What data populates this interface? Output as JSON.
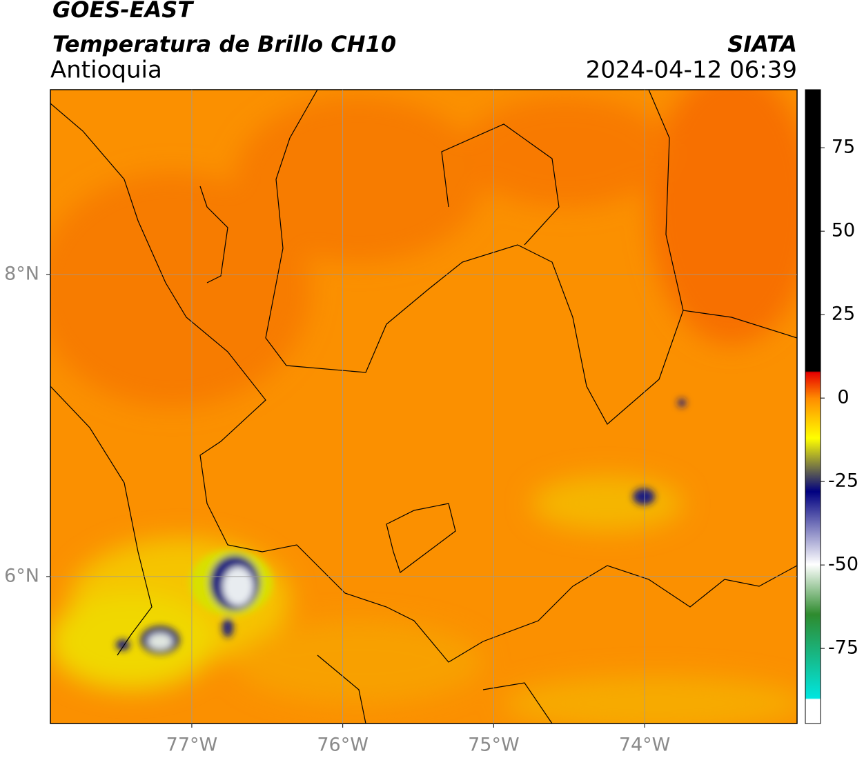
{
  "header": {
    "title": "GOES-EAST",
    "subtitle": "Temperatura de Brillo CH10",
    "region": "Antioquia",
    "source": "SIATA",
    "timestamp": "2024-04-12 06:39"
  },
  "map": {
    "xlim": [
      -77.937,
      -72.99
    ],
    "ylim": [
      5.027,
      9.224
    ],
    "xticks": [
      {
        "value": -77,
        "label": "77°W"
      },
      {
        "value": -76,
        "label": "76°W"
      },
      {
        "value": -75,
        "label": "75°W"
      },
      {
        "value": -74,
        "label": "74°W"
      }
    ],
    "yticks": [
      {
        "value": 6,
        "label": "6°N"
      },
      {
        "value": 8,
        "label": "8°N"
      }
    ],
    "grid": true
  },
  "colorbar": {
    "lim": [
      -97.5,
      92.4
    ],
    "ticks": [
      -75,
      -50,
      -25,
      0,
      25,
      50,
      75
    ]
  }
}
